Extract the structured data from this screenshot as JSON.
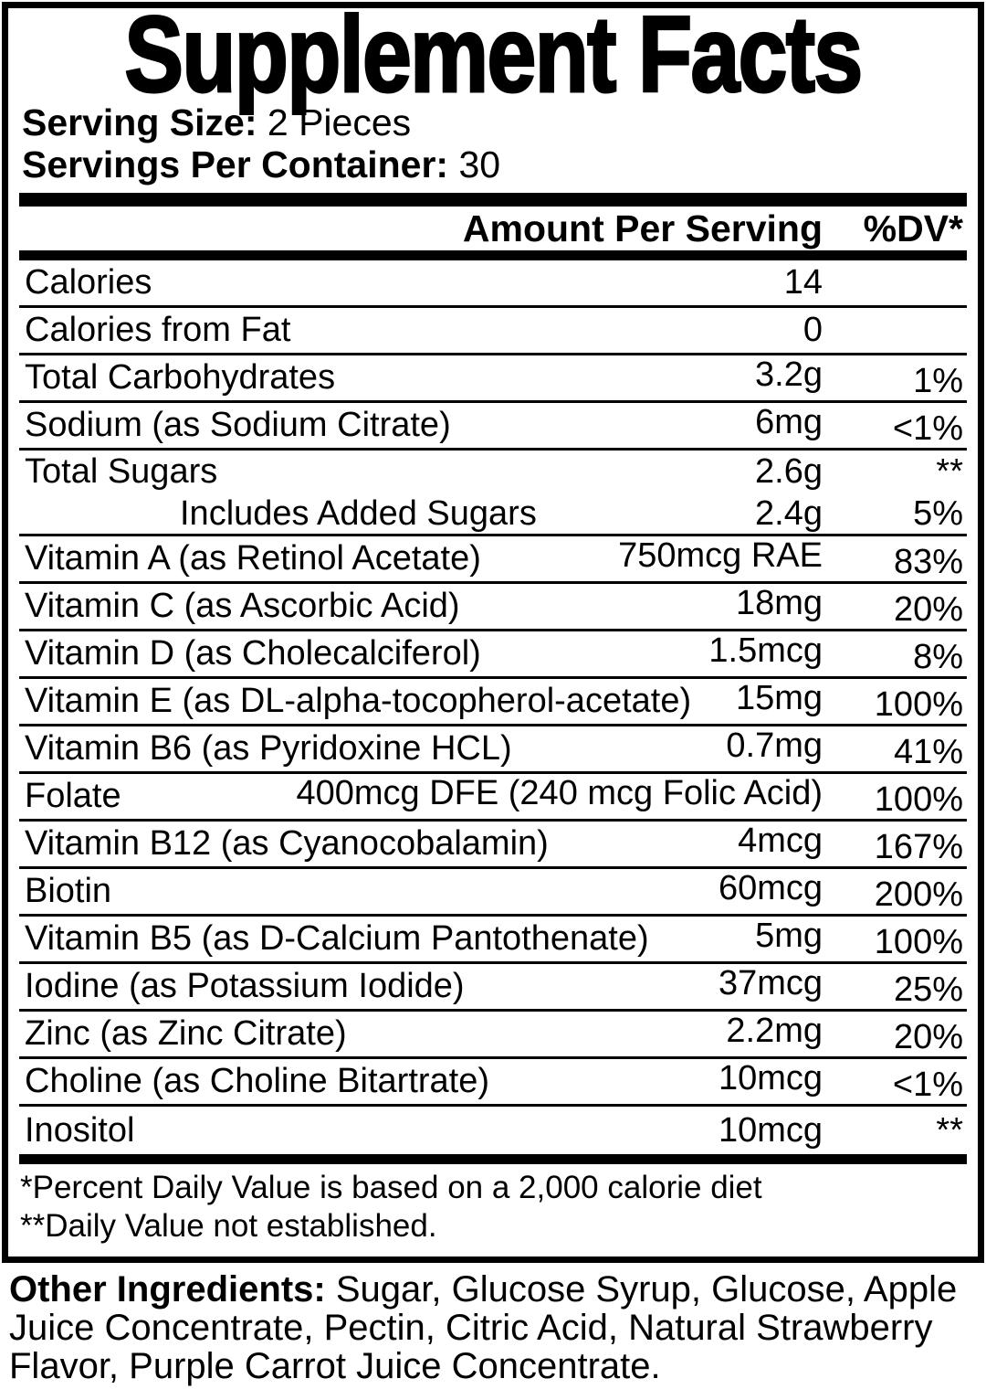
{
  "title": "Supplement Facts",
  "serving": {
    "size_label": "Serving Size:",
    "size_value": " 2 Pieces",
    "per_container_label": "Servings Per Container:",
    "per_container_value": " 30"
  },
  "table": {
    "amount_header": "Amount Per Serving",
    "dv_header": "%DV*",
    "rows": [
      {
        "name": "Calories",
        "amount": "14",
        "dv": ""
      },
      {
        "name": "Calories from Fat",
        "amount": "0",
        "dv": ""
      },
      {
        "name": "Total Carbohydrates",
        "amount": "3.2g",
        "dv": "1%"
      },
      {
        "name": "Sodium (as Sodium Citrate)",
        "amount": "6mg",
        "dv": "<1%"
      },
      {
        "name": "Total Sugars",
        "amount": "2.6g",
        "dv": "**"
      },
      {
        "name": "Includes Added Sugars",
        "amount": "2.4g",
        "dv": "5%",
        "indent": true
      },
      {
        "name": "Vitamin A (as Retinol Acetate)",
        "amount": "750mcg RAE",
        "dv": "83%"
      },
      {
        "name": "Vitamin C (as Ascorbic Acid)",
        "amount": "18mg",
        "dv": "20%"
      },
      {
        "name": "Vitamin D (as Cholecalciferol)",
        "amount": "1.5mcg",
        "dv": "8%"
      },
      {
        "name": "Vitamin E (as DL-alpha-tocopherol-acetate)",
        "amount": "15mg",
        "dv": "100%"
      },
      {
        "name": "Vitamin B6 (as Pyridoxine HCL)",
        "amount": "0.7mg",
        "dv": "41%"
      },
      {
        "name": "Folate",
        "amount": "400mcg DFE (240 mcg Folic Acid)",
        "dv": "100%"
      },
      {
        "name": "Vitamin B12 (as Cyanocobalamin)",
        "amount": "4mcg",
        "dv": "167%"
      },
      {
        "name": "Biotin",
        "amount": "60mcg",
        "dv": "200%"
      },
      {
        "name": "Vitamin B5 (as D-Calcium Pantothenate)",
        "amount": "5mg",
        "dv": "100%"
      },
      {
        "name": "Iodine (as Potassium Iodide)",
        "amount": "37mcg",
        "dv": "25%"
      },
      {
        "name": "Zinc (as Zinc Citrate)",
        "amount": "2.2mg",
        "dv": "20%"
      },
      {
        "name": "Choline (as Choline Bitartrate)",
        "amount": "10mcg",
        "dv": "<1%"
      },
      {
        "name": "Inositol",
        "amount": "10mcg",
        "dv": "**"
      }
    ]
  },
  "footnotes": [
    "*Percent Daily Value is based on a 2,000 calorie diet",
    "**Daily Value not established."
  ],
  "other_ingredients": {
    "label": "Other Ingredients:",
    "text": " Sugar, Glucose Syrup, Glucose, Apple Juice Concentrate, Pectin, Citric Acid, Natural Strawberry Flavor, Purple Carrot Juice Concentrate."
  },
  "colors": {
    "text": "#000000",
    "background": "#ffffff"
  }
}
